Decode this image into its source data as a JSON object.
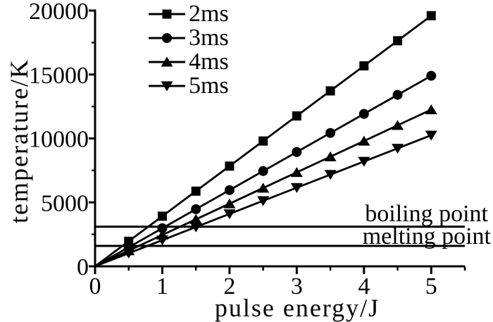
{
  "figure": {
    "background": "#ffffff"
  },
  "chart_data": {
    "type": "line",
    "title": "",
    "xlabel": "pulse energy/J",
    "ylabel": "temperature/K",
    "xlim": [
      0,
      5.5
    ],
    "ylim": [
      0,
      20000
    ],
    "xticks_major": [
      0,
      1,
      2,
      3,
      4,
      5
    ],
    "xticks_minor": [
      0.5,
      1.5,
      2.5,
      3.5,
      4.5,
      5.5
    ],
    "yticks_major": [
      0,
      5000,
      10000,
      15000,
      20000
    ],
    "yticks_minor": [
      2500,
      7500,
      12500,
      17500
    ],
    "grid": false,
    "legend_position": "top-inside-left",
    "color": "#000000",
    "background": "#ffffff",
    "x": [
      0,
      0.5,
      1,
      1.5,
      2,
      2.5,
      3,
      3.5,
      4,
      4.5,
      5
    ],
    "series": [
      {
        "name": "2ms",
        "marker": "square",
        "values": [
          0,
          1960,
          3920,
          5880,
          7840,
          9800,
          11760,
          13720,
          15680,
          17640,
          19600
        ]
      },
      {
        "name": "3ms",
        "marker": "circle",
        "values": [
          0,
          1490,
          2980,
          4470,
          5960,
          7450,
          8940,
          10430,
          11920,
          13410,
          14900
        ]
      },
      {
        "name": "4ms",
        "marker": "triangle-up",
        "values": [
          0,
          1225,
          2450,
          3675,
          4900,
          6125,
          7350,
          8575,
          9800,
          11025,
          12250
        ]
      },
      {
        "name": "5ms",
        "marker": "triangle-down",
        "values": [
          0,
          1025,
          2050,
          3075,
          4100,
          5125,
          6150,
          7175,
          8200,
          9225,
          10250
        ]
      }
    ],
    "annotations": [
      {
        "label": "boiling point",
        "value": 3100
      },
      {
        "label": "melting point",
        "value": 1600
      }
    ]
  }
}
